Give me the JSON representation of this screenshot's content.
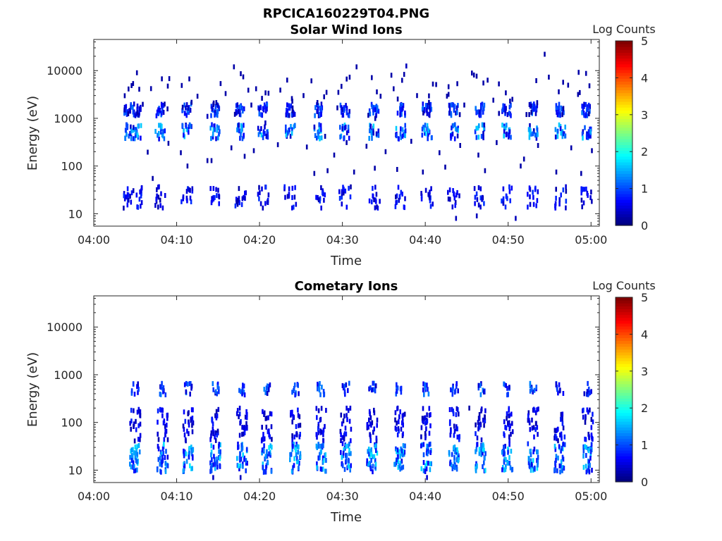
{
  "figure_title": "RPCICA160229T04.PNG",
  "colorbar": {
    "label": "Log Counts",
    "ticks": [
      "0",
      "1",
      "2",
      "3",
      "4",
      "5"
    ],
    "range": [
      0,
      5
    ],
    "colormap": "jet"
  },
  "chart_data": [
    {
      "type": "heatmap",
      "title": "Solar Wind Ions",
      "xlabel": "Time",
      "ylabel": "Energy (eV)",
      "x_ticks": [
        "04:00",
        "04:10",
        "04:20",
        "04:30",
        "04:40",
        "04:50",
        "05:00"
      ],
      "x_tick_minutes": [
        0,
        10,
        20,
        30,
        40,
        50,
        60
      ],
      "xlim_minutes": [
        0,
        61
      ],
      "y_ticks": [
        "10",
        "100",
        "1000",
        "10000"
      ],
      "y_tick_values": [
        10,
        100,
        1000,
        10000
      ],
      "ylim": [
        5.5,
        45000
      ],
      "yscale": "log",
      "bursts_minutes": [
        4.1,
        5.0,
        7.9,
        11.1,
        14.5,
        17.6,
        20.3,
        23.6,
        27.1,
        30.2,
        33.7,
        36.9,
        40.1,
        43.3,
        46.5,
        49.7,
        52.9,
        56.2,
        59.3
      ],
      "sparse_points": [
        [
          3.6,
          1500,
          0.3
        ],
        [
          5.1,
          9000,
          0.2
        ],
        [
          6.8,
          4200,
          0.2
        ],
        [
          9.0,
          6800,
          0.2
        ],
        [
          12.4,
          2900,
          0.2
        ],
        [
          13.6,
          1100,
          0.3
        ],
        [
          15.8,
          3300,
          0.2
        ],
        [
          16.8,
          12000,
          0.2
        ],
        [
          18.9,
          1900,
          0.2
        ],
        [
          20.6,
          800,
          0.3
        ],
        [
          22.4,
          3900,
          0.2
        ],
        [
          23.8,
          2600,
          0.2
        ],
        [
          25.2,
          3000,
          0.2
        ],
        [
          27.8,
          420,
          0.2
        ],
        [
          29.4,
          3500,
          0.2
        ],
        [
          31.6,
          12000,
          0.2
        ],
        [
          34.5,
          2900,
          0.2
        ],
        [
          35.8,
          8000,
          0.2
        ],
        [
          37.6,
          12500,
          0.3
        ],
        [
          38.9,
          3000,
          0.2
        ],
        [
          41.2,
          5100,
          0.2
        ],
        [
          42.7,
          4600,
          0.2
        ],
        [
          44.6,
          1900,
          0.2
        ],
        [
          46.9,
          5500,
          0.2
        ],
        [
          48.1,
          2400,
          0.2
        ],
        [
          50.4,
          2500,
          0.2
        ],
        [
          52.1,
          1200,
          0.2
        ],
        [
          54.3,
          22000,
          0.2
        ],
        [
          54.8,
          7300,
          0.2
        ],
        [
          56.0,
          3600,
          0.2
        ],
        [
          58.4,
          9200,
          0.2
        ],
        [
          59.7,
          4800,
          0.2
        ],
        [
          6.4,
          195,
          0.2
        ],
        [
          8.9,
          300,
          0.2
        ],
        [
          10.4,
          190,
          0.2
        ],
        [
          14.1,
          130,
          0.2
        ],
        [
          16.5,
          240,
          0.2
        ],
        [
          19.2,
          210,
          0.2
        ],
        [
          22.1,
          280,
          0.2
        ],
        [
          25.6,
          250,
          0.2
        ],
        [
          28.9,
          170,
          0.2
        ],
        [
          30.4,
          310,
          0.2
        ],
        [
          32.8,
          260,
          0.2
        ],
        [
          35.1,
          200,
          0.2
        ],
        [
          38.2,
          330,
          0.2
        ],
        [
          41.6,
          190,
          0.2
        ],
        [
          44.1,
          270,
          0.2
        ],
        [
          46.3,
          170,
          0.2
        ],
        [
          48.5,
          310,
          0.2
        ],
        [
          51.8,
          140,
          0.2
        ],
        [
          53.5,
          270,
          0.2
        ],
        [
          57.5,
          240,
          0.2
        ],
        [
          60.0,
          210,
          0.2
        ],
        [
          7.0,
          55,
          0.2
        ],
        [
          11.2,
          100,
          0.2
        ],
        [
          13.6,
          130,
          0.2
        ],
        [
          18.1,
          160,
          0.2
        ],
        [
          26.5,
          70,
          0.2
        ],
        [
          28.1,
          80,
          0.2
        ],
        [
          31.3,
          75,
          0.2
        ],
        [
          33.8,
          90,
          0.2
        ],
        [
          36.5,
          85,
          0.2
        ],
        [
          39.6,
          75,
          0.2
        ],
        [
          42.3,
          95,
          0.2
        ],
        [
          47.1,
          80,
          0.2
        ],
        [
          51.4,
          100,
          0.2
        ],
        [
          55.7,
          75,
          0.2
        ],
        [
          58.7,
          70,
          0.2
        ],
        [
          43.6,
          8,
          0.3
        ],
        [
          46.1,
          9,
          0.3
        ],
        [
          50.8,
          8,
          0.3
        ]
      ],
      "seed": 11
    },
    {
      "type": "heatmap",
      "title": "Cometary Ions",
      "xlabel": "Time",
      "ylabel": "Energy (eV)",
      "x_ticks": [
        "04:00",
        "04:10",
        "04:20",
        "04:30",
        "04:40",
        "04:50",
        "05:00"
      ],
      "x_tick_minutes": [
        0,
        10,
        20,
        30,
        40,
        50,
        60
      ],
      "xlim_minutes": [
        0,
        61
      ],
      "y_ticks": [
        "10",
        "100",
        "1000",
        "10000"
      ],
      "y_tick_values": [
        10,
        100,
        1000,
        10000
      ],
      "ylim": [
        5.5,
        45000
      ],
      "yscale": "log",
      "bursts_minutes": [
        4.9,
        8.2,
        11.3,
        14.6,
        17.8,
        20.8,
        24.2,
        27.3,
        30.3,
        33.5,
        36.8,
        40.0,
        43.4,
        46.6,
        49.8,
        52.9,
        56.1,
        59.5
      ],
      "sparse_points": [
        [
          14.3,
          7,
          0.3
        ],
        [
          17.6,
          7,
          0.3
        ],
        [
          40.1,
          7,
          0.4
        ],
        [
          43.9,
          150,
          0.3
        ],
        [
          45.2,
          200,
          0.2
        ]
      ],
      "seed": 29
    }
  ]
}
